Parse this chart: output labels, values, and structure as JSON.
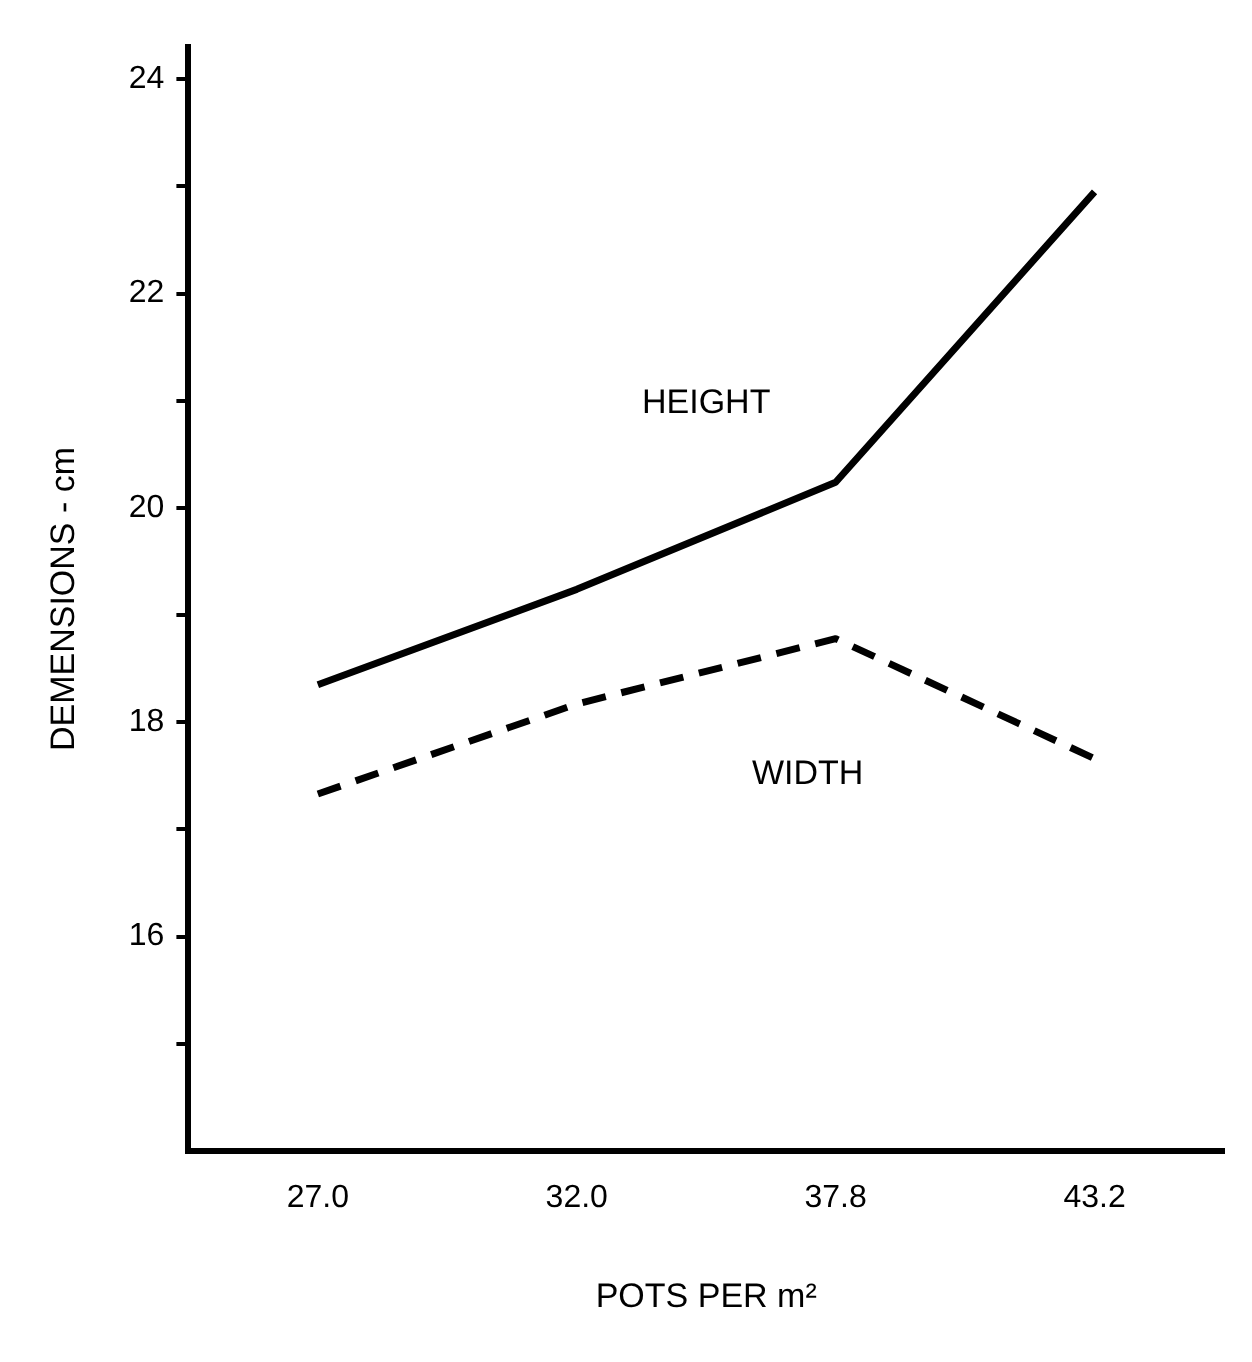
{
  "chart_data": {
    "type": "line",
    "xlabel": "POTS PER m²",
    "ylabel": "DEMENSIONS - cm",
    "categories": [
      "27.0",
      "32.0",
      "37.8",
      "43.2"
    ],
    "series": [
      {
        "name": "HEIGHT",
        "color": "#000000",
        "values": [
          18.35,
          19.24,
          20.24,
          22.95
        ],
        "line_style": "solid"
      },
      {
        "name": "WIDTH",
        "color": "#000000",
        "values": [
          17.33,
          18.17,
          18.78,
          17.66
        ],
        "line_style": "dashed"
      }
    ],
    "ylim": [
      14,
      24.3
    ],
    "yticks": [
      {
        "value": 15,
        "label": null
      },
      16,
      {
        "value": 17,
        "label": null
      },
      18,
      {
        "value": 19,
        "label": null
      },
      20,
      {
        "value": 21,
        "label": null
      },
      22,
      {
        "value": 23,
        "label": null
      },
      24
    ],
    "grid": false,
    "legend": false,
    "marker": "none"
  }
}
